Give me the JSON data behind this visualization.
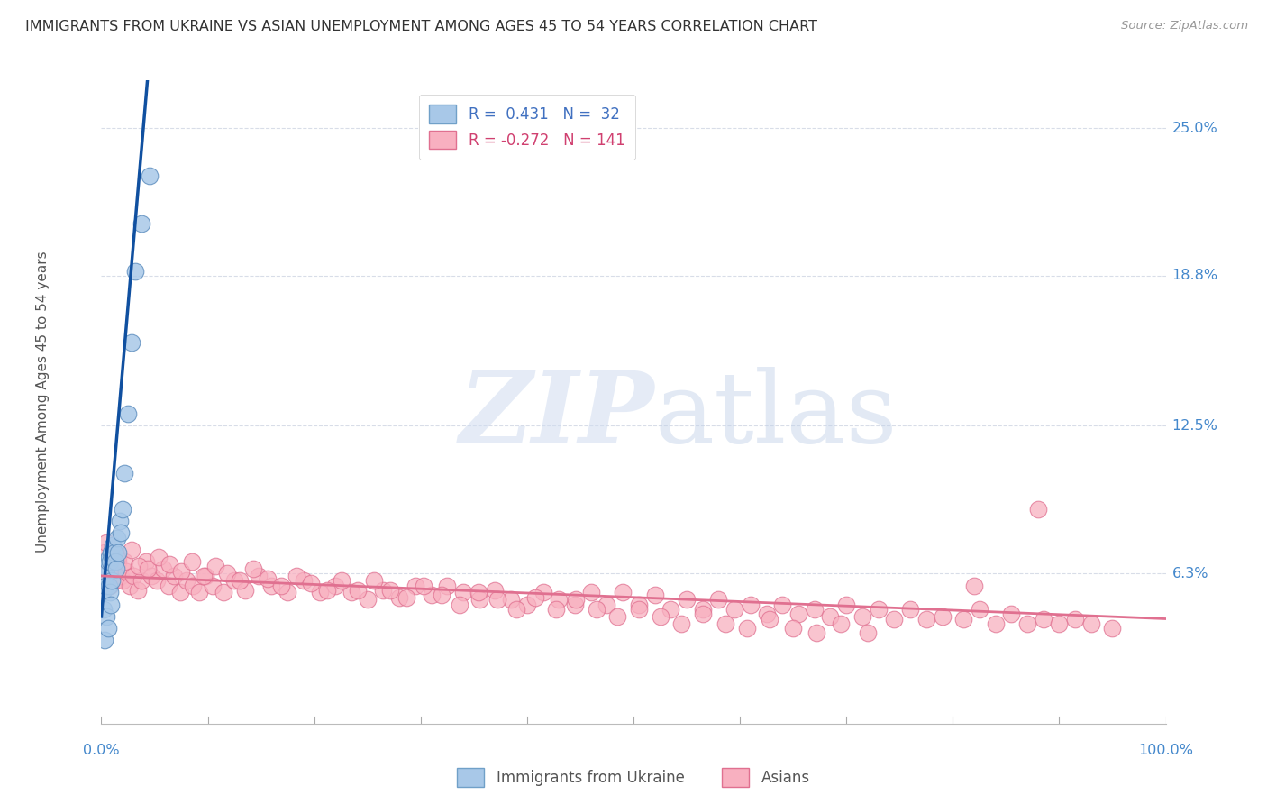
{
  "title": "IMMIGRANTS FROM UKRAINE VS ASIAN UNEMPLOYMENT AMONG AGES 45 TO 54 YEARS CORRELATION CHART",
  "source": "Source: ZipAtlas.com",
  "ylabel": "Unemployment Among Ages 45 to 54 years",
  "y_tick_labels": [
    "6.3%",
    "12.5%",
    "18.8%",
    "25.0%"
  ],
  "y_tick_values": [
    0.063,
    0.125,
    0.188,
    0.25
  ],
  "xlim": [
    0.0,
    1.0
  ],
  "ylim": [
    0.0,
    0.27
  ],
  "ukraine_color": "#A8C8E8",
  "ukraine_edge": "#6090C0",
  "asian_color": "#F8B0C0",
  "asian_edge": "#E07090",
  "ukraine_trend_color": "#1050A0",
  "asian_trend_color": "#E07090",
  "dashed_line_color": "#C0CCDD",
  "grid_color": "#D8DDE8",
  "background_color": "#FFFFFF",
  "ukraine_x": [
    0.001,
    0.002,
    0.003,
    0.003,
    0.004,
    0.005,
    0.005,
    0.006,
    0.006,
    0.007,
    0.007,
    0.008,
    0.008,
    0.009,
    0.009,
    0.01,
    0.01,
    0.011,
    0.012,
    0.013,
    0.014,
    0.015,
    0.016,
    0.017,
    0.018,
    0.02,
    0.022,
    0.025,
    0.028,
    0.032,
    0.038,
    0.045
  ],
  "ukraine_y": [
    0.055,
    0.048,
    0.062,
    0.035,
    0.058,
    0.065,
    0.045,
    0.068,
    0.04,
    0.07,
    0.058,
    0.068,
    0.055,
    0.072,
    0.05,
    0.07,
    0.06,
    0.075,
    0.072,
    0.068,
    0.065,
    0.078,
    0.072,
    0.085,
    0.08,
    0.09,
    0.105,
    0.13,
    0.16,
    0.19,
    0.21,
    0.23
  ],
  "asian_x": [
    0.001,
    0.002,
    0.003,
    0.004,
    0.005,
    0.006,
    0.007,
    0.008,
    0.009,
    0.01,
    0.012,
    0.014,
    0.016,
    0.018,
    0.02,
    0.023,
    0.027,
    0.03,
    0.034,
    0.038,
    0.042,
    0.047,
    0.052,
    0.058,
    0.063,
    0.068,
    0.074,
    0.08,
    0.086,
    0.092,
    0.098,
    0.105,
    0.115,
    0.125,
    0.135,
    0.148,
    0.16,
    0.175,
    0.19,
    0.205,
    0.22,
    0.235,
    0.25,
    0.265,
    0.28,
    0.295,
    0.31,
    0.325,
    0.34,
    0.355,
    0.37,
    0.385,
    0.4,
    0.415,
    0.43,
    0.445,
    0.46,
    0.475,
    0.49,
    0.505,
    0.52,
    0.535,
    0.55,
    0.565,
    0.58,
    0.595,
    0.61,
    0.625,
    0.64,
    0.655,
    0.67,
    0.685,
    0.7,
    0.715,
    0.73,
    0.745,
    0.76,
    0.775,
    0.79,
    0.81,
    0.825,
    0.84,
    0.855,
    0.87,
    0.885,
    0.9,
    0.915,
    0.93,
    0.95,
    0.003,
    0.005,
    0.008,
    0.012,
    0.016,
    0.022,
    0.028,
    0.035,
    0.044,
    0.054,
    0.064,
    0.075,
    0.085,
    0.096,
    0.107,
    0.118,
    0.13,
    0.143,
    0.156,
    0.169,
    0.183,
    0.197,
    0.212,
    0.226,
    0.241,
    0.256,
    0.271,
    0.287,
    0.303,
    0.32,
    0.337,
    0.354,
    0.372,
    0.39,
    0.408,
    0.427,
    0.446,
    0.465,
    0.485,
    0.505,
    0.525,
    0.545,
    0.565,
    0.586,
    0.607,
    0.628,
    0.65,
    0.672,
    0.695,
    0.72,
    0.82,
    0.88
  ],
  "asian_y": [
    0.06,
    0.065,
    0.058,
    0.068,
    0.062,
    0.06,
    0.065,
    0.058,
    0.07,
    0.066,
    0.064,
    0.06,
    0.068,
    0.062,
    0.06,
    0.064,
    0.058,
    0.062,
    0.056,
    0.06,
    0.068,
    0.062,
    0.06,
    0.065,
    0.058,
    0.062,
    0.055,
    0.06,
    0.058,
    0.055,
    0.062,
    0.058,
    0.055,
    0.06,
    0.056,
    0.062,
    0.058,
    0.055,
    0.06,
    0.055,
    0.058,
    0.055,
    0.052,
    0.056,
    0.053,
    0.058,
    0.054,
    0.058,
    0.055,
    0.052,
    0.056,
    0.052,
    0.05,
    0.055,
    0.052,
    0.05,
    0.055,
    0.05,
    0.055,
    0.05,
    0.054,
    0.048,
    0.052,
    0.048,
    0.052,
    0.048,
    0.05,
    0.046,
    0.05,
    0.046,
    0.048,
    0.045,
    0.05,
    0.045,
    0.048,
    0.044,
    0.048,
    0.044,
    0.045,
    0.044,
    0.048,
    0.042,
    0.046,
    0.042,
    0.044,
    0.042,
    0.044,
    0.042,
    0.04,
    0.072,
    0.076,
    0.068,
    0.072,
    0.07,
    0.068,
    0.073,
    0.066,
    0.065,
    0.07,
    0.067,
    0.064,
    0.068,
    0.062,
    0.066,
    0.063,
    0.06,
    0.065,
    0.061,
    0.058,
    0.062,
    0.059,
    0.056,
    0.06,
    0.056,
    0.06,
    0.056,
    0.053,
    0.058,
    0.054,
    0.05,
    0.055,
    0.052,
    0.048,
    0.053,
    0.048,
    0.052,
    0.048,
    0.045,
    0.048,
    0.045,
    0.042,
    0.046,
    0.042,
    0.04,
    0.044,
    0.04,
    0.038,
    0.042,
    0.038,
    0.058,
    0.09
  ],
  "ukraine_slope": 5.2,
  "ukraine_intercept": 0.045,
  "asian_slope": -0.018,
  "asian_intercept": 0.062
}
